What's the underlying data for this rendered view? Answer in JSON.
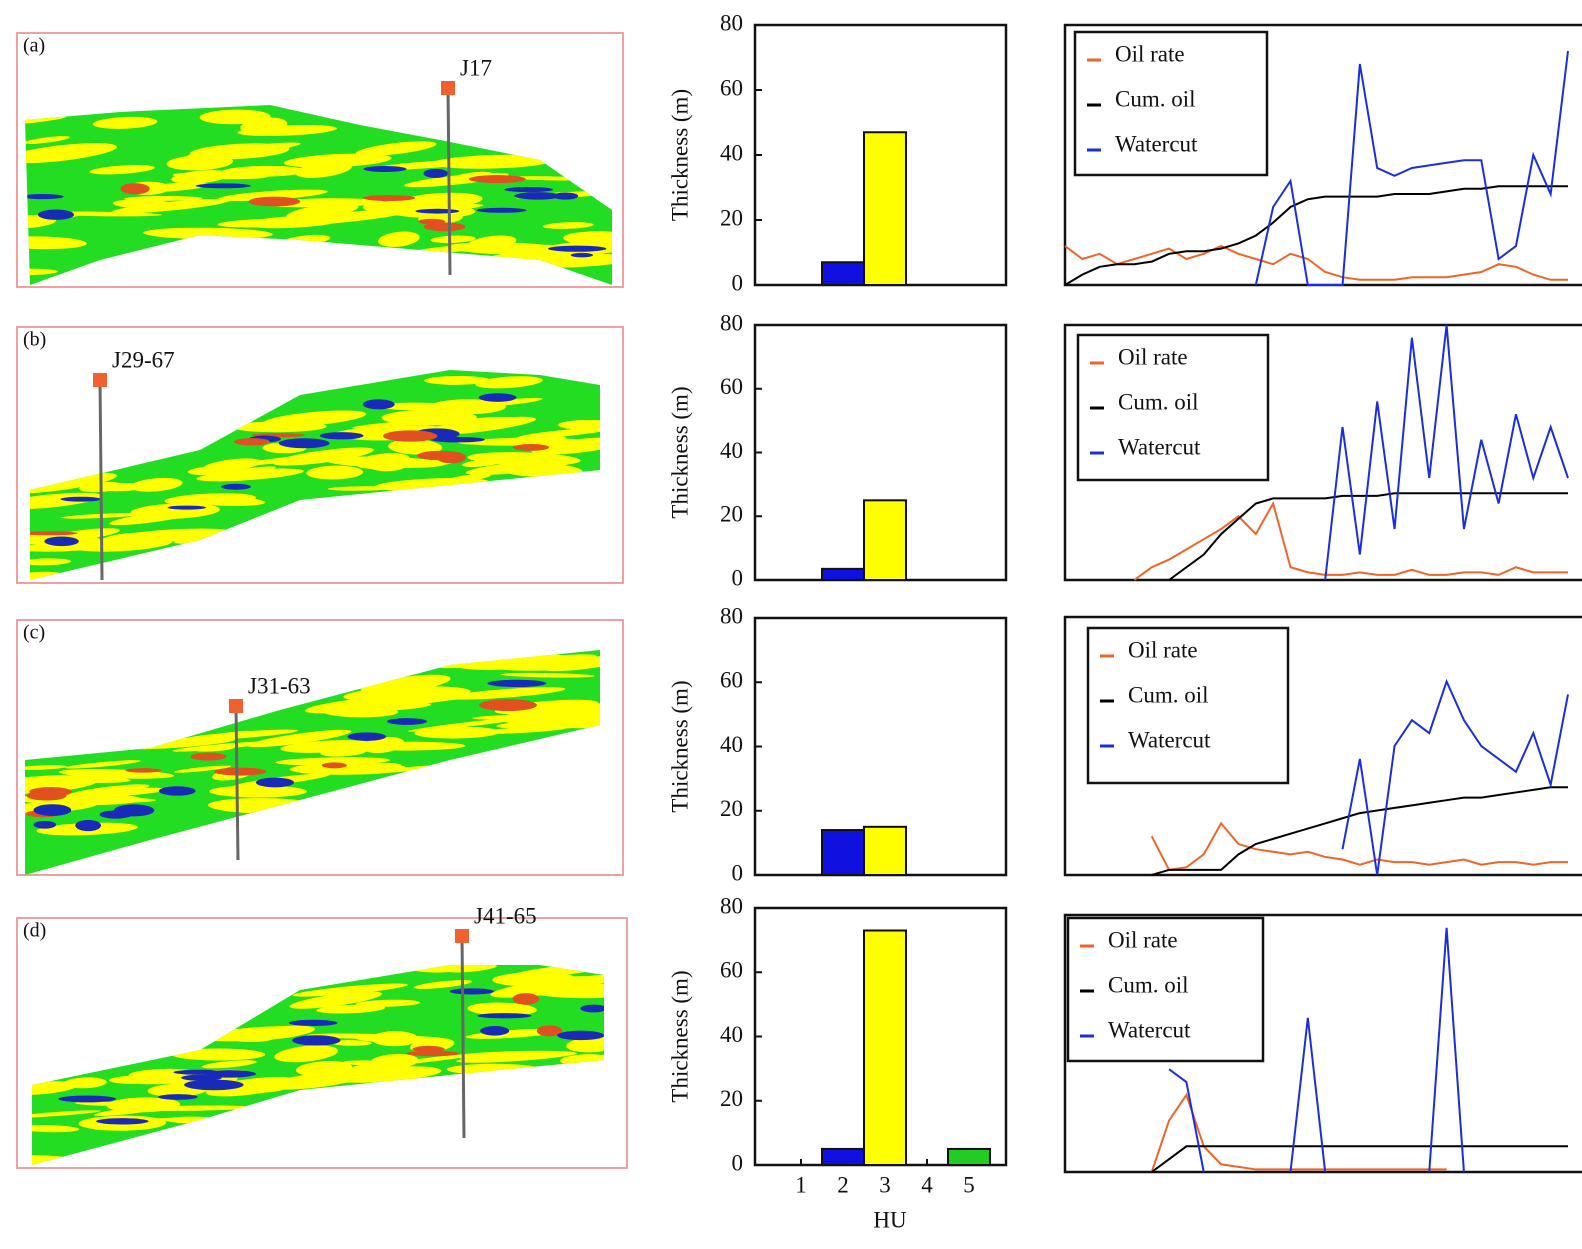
{
  "sections": [
    {
      "label": "(a)",
      "well": "J17"
    },
    {
      "label": "(b)",
      "well": "J29-67"
    },
    {
      "label": "(c)",
      "well": "J31-63"
    },
    {
      "label": "(d)",
      "well": "J41-65"
    }
  ],
  "chart_data": [
    {
      "type": "bar",
      "ylabel": "Thickness (m)",
      "ylim": [
        0,
        80
      ],
      "yticks": [
        0,
        20,
        40,
        60,
        80
      ],
      "categories": [
        null,
        null,
        null,
        null,
        null
      ],
      "values": [
        null,
        7,
        47,
        null,
        null
      ],
      "colors": [
        null,
        "#1010e0",
        "#ffff00",
        null,
        null
      ]
    },
    {
      "type": "line",
      "ylim": [
        0,
        100
      ],
      "legend": "upper left",
      "series": [
        {
          "name": "Oil rate",
          "color": "#f06428",
          "values": [
            15,
            10,
            12,
            8,
            10,
            12,
            14,
            10,
            12,
            15,
            12,
            10,
            8,
            12,
            10,
            5,
            3,
            2,
            2,
            2,
            3,
            3,
            3,
            4,
            5,
            8,
            7,
            4,
            2,
            2
          ]
        },
        {
          "name": "Cum. oil",
          "color": "#000000",
          "values": [
            0,
            4,
            7,
            8,
            8,
            9,
            12,
            13,
            13,
            14,
            16,
            19,
            24,
            30,
            33,
            34,
            34,
            34,
            34,
            35,
            35,
            35,
            36,
            37,
            37,
            38,
            38,
            38,
            38,
            38
          ]
        },
        {
          "name": "Watercut",
          "color": "#1a2ee0",
          "values": [
            null,
            null,
            null,
            null,
            null,
            null,
            null,
            null,
            null,
            null,
            null,
            0,
            30,
            40,
            0,
            0,
            0,
            85,
            45,
            42,
            45,
            46,
            47,
            48,
            48,
            10,
            15,
            50,
            35,
            90
          ]
        }
      ]
    },
    {
      "type": "bar",
      "ylabel": "Thickness (m)",
      "ylim": [
        0,
        80
      ],
      "yticks": [
        0,
        20,
        40,
        60,
        80
      ],
      "categories": [
        null,
        null,
        null,
        null,
        null
      ],
      "values": [
        null,
        3.5,
        25,
        null,
        null
      ],
      "colors": [
        null,
        "#1010e0",
        "#ffff00",
        null,
        null
      ]
    },
    {
      "type": "line",
      "ylim": [
        0,
        100
      ],
      "legend": "upper left",
      "series": [
        {
          "name": "Oil rate",
          "color": "#f06428",
          "values": [
            null,
            null,
            null,
            null,
            0,
            5,
            8,
            12,
            16,
            20,
            25,
            18,
            30,
            5,
            3,
            2,
            2,
            3,
            2,
            2,
            4,
            2,
            2,
            3,
            3,
            2,
            5,
            3,
            3,
            3
          ]
        },
        {
          "name": "Cum. oil",
          "color": "#000000",
          "values": [
            null,
            null,
            null,
            null,
            null,
            null,
            0,
            5,
            10,
            18,
            24,
            30,
            32,
            32,
            32,
            32,
            33,
            33,
            33,
            34,
            34,
            34,
            34,
            34,
            34,
            34,
            34,
            34,
            34,
            34
          ]
        },
        {
          "name": "Watercut",
          "color": "#1a2ee0",
          "values": [
            null,
            null,
            null,
            null,
            null,
            null,
            null,
            null,
            null,
            null,
            null,
            null,
            null,
            null,
            null,
            0,
            60,
            10,
            70,
            20,
            95,
            40,
            100,
            20,
            55,
            30,
            65,
            40,
            60,
            40
          ]
        }
      ]
    },
    {
      "type": "bar",
      "ylabel": "Thickness (m)",
      "ylim": [
        0,
        80
      ],
      "yticks": [
        0,
        20,
        40,
        60,
        80
      ],
      "categories": [
        null,
        null,
        null,
        null,
        null
      ],
      "values": [
        null,
        14,
        15,
        null,
        null
      ],
      "colors": [
        null,
        "#1010e0",
        "#ffff00",
        null,
        null
      ]
    },
    {
      "type": "line",
      "ylim": [
        0,
        100
      ],
      "legend": "upper left",
      "series": [
        {
          "name": "Oil rate",
          "color": "#f06428",
          "values": [
            null,
            null,
            null,
            null,
            null,
            15,
            2,
            3,
            8,
            20,
            12,
            10,
            9,
            8,
            9,
            7,
            6,
            4,
            6,
            5,
            5,
            4,
            5,
            6,
            4,
            5,
            5,
            4,
            5,
            5
          ]
        },
        {
          "name": "Cum. oil",
          "color": "#000000",
          "values": [
            null,
            null,
            null,
            null,
            null,
            0,
            2,
            2,
            2,
            2,
            8,
            12,
            14,
            16,
            18,
            20,
            22,
            24,
            25,
            26,
            27,
            28,
            29,
            30,
            30,
            31,
            32,
            33,
            34,
            34
          ]
        },
        {
          "name": "Watercut",
          "color": "#1a2ee0",
          "values": [
            null,
            null,
            null,
            null,
            null,
            null,
            null,
            null,
            null,
            null,
            null,
            null,
            null,
            null,
            null,
            null,
            10,
            45,
            0,
            50,
            60,
            55,
            75,
            60,
            50,
            45,
            40,
            55,
            35,
            70
          ]
        }
      ]
    },
    {
      "type": "bar",
      "ylabel": "Thickness (m)",
      "xlabel": "HU",
      "ylim": [
        0,
        80
      ],
      "yticks": [
        0,
        20,
        40,
        60,
        80
      ],
      "categories": [
        1,
        2,
        3,
        4,
        5
      ],
      "values": [
        null,
        5,
        73,
        null,
        5
      ],
      "colors": [
        null,
        "#1010e0",
        "#ffff00",
        null,
        "#22cc22"
      ]
    },
    {
      "type": "line",
      "ylim": [
        0,
        100
      ],
      "legend": "upper left",
      "series": [
        {
          "name": "Oil rate",
          "color": "#f06428",
          "values": [
            null,
            null,
            null,
            null,
            null,
            0,
            20,
            30,
            10,
            3,
            2,
            1,
            1,
            1,
            1,
            1,
            1,
            1,
            1,
            1,
            1,
            1,
            1,
            null,
            null,
            null,
            null,
            null,
            null,
            null
          ]
        },
        {
          "name": "Cum. oil",
          "color": "#000000",
          "values": [
            null,
            null,
            null,
            null,
            null,
            0,
            5,
            10,
            10,
            10,
            10,
            10,
            10,
            10,
            10,
            10,
            10,
            10,
            10,
            10,
            10,
            10,
            10,
            10,
            10,
            10,
            10,
            10,
            10,
            10
          ]
        },
        {
          "name": "Watercut",
          "color": "#1a2ee0",
          "values": [
            null,
            null,
            null,
            null,
            null,
            null,
            40,
            35,
            0,
            null,
            null,
            null,
            null,
            0,
            60,
            0,
            null,
            null,
            null,
            null,
            null,
            0,
            95,
            0,
            null,
            null,
            null,
            null,
            null,
            null
          ]
        }
      ]
    }
  ]
}
